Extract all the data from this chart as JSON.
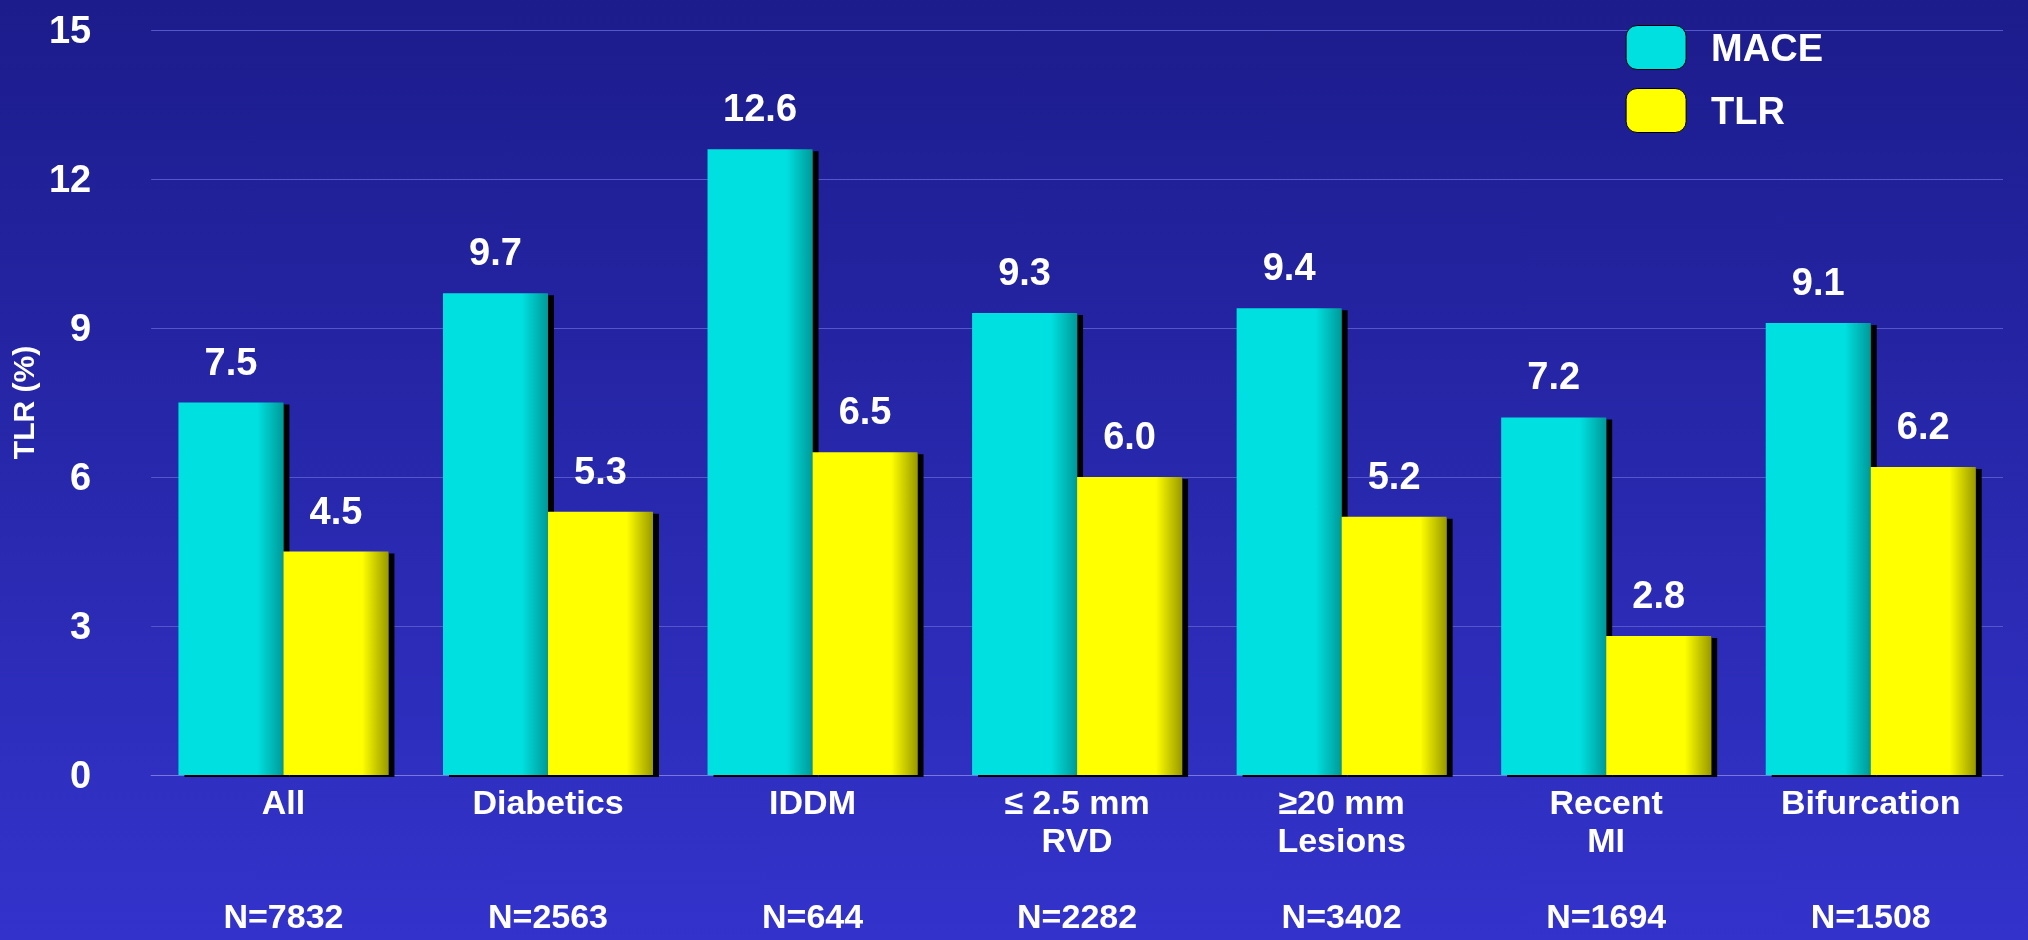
{
  "chart_data": {
    "type": "bar",
    "ylabel": "TLR (%)",
    "categories": [
      "All",
      "Diabetics",
      "IDDM",
      "≤ 2.5 mm\nRVD",
      "≥20 mm\nLesions",
      "Recent\nMI",
      "Bifurcation"
    ],
    "series": [
      {
        "name": "MACE",
        "color": "#00e0e0",
        "values": [
          7.5,
          9.7,
          12.6,
          9.3,
          9.4,
          7.2,
          9.1
        ],
        "value_labels": [
          "7.5",
          "9.7",
          "12.6",
          "9.3",
          "9.4",
          "7.2",
          "9.1"
        ]
      },
      {
        "name": "TLR",
        "color": "#ffff00",
        "values": [
          4.5,
          5.3,
          6.5,
          6.0,
          5.2,
          2.8,
          6.2
        ],
        "value_labels": [
          "4.5",
          "5.3",
          "6.5",
          "6.0",
          "5.2",
          "2.8",
          "6.2"
        ]
      }
    ],
    "annotations": [
      "N=7832",
      "N=2563",
      "N=644",
      "N=2282",
      "N=3402",
      "N=1694",
      "N=1508"
    ],
    "ylim": [
      0,
      15
    ],
    "yticks": [
      0,
      3,
      6,
      9,
      12,
      15
    ],
    "grid": "y",
    "legend": "top right"
  }
}
